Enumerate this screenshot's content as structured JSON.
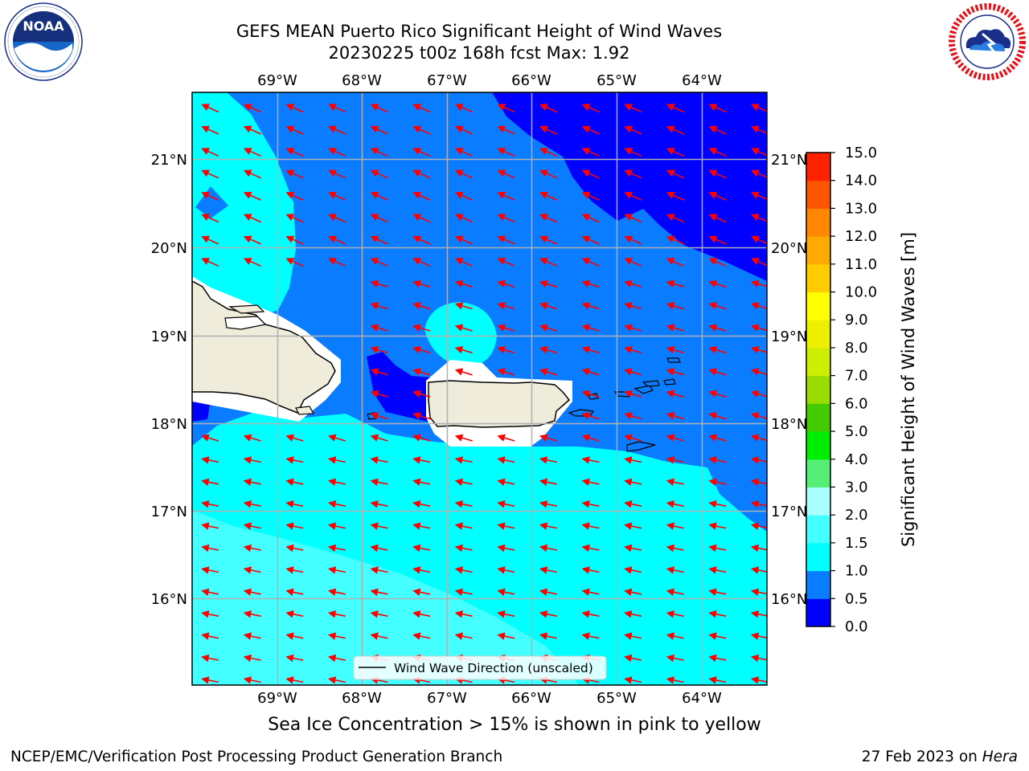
{
  "header": {
    "title_line1": "GEFS MEAN Puerto Rico Significant Height of Wind Waves",
    "title_line2": "20230225 t00z 168h fcst   Max: 1.92"
  },
  "logos": {
    "noaa": {
      "text": "NOAA",
      "ring_text": "NATIONAL OCEANIC AND ATMOSPHERIC ADMINISTRATION · U.S. DEPARTMENT OF COMMERCE"
    },
    "nws": {
      "ring_text": "NATIONAL WEATHER SERVICE"
    }
  },
  "map": {
    "lon_range": [
      -70.0,
      -63.25
    ],
    "lat_range": [
      15.0,
      21.75
    ],
    "lon_ticks": [
      "69°W",
      "68°W",
      "67°W",
      "66°W",
      "65°W",
      "64°W"
    ],
    "lat_ticks": [
      "21°N",
      "20°N",
      "19°N",
      "18°N",
      "17°N",
      "16°N"
    ],
    "grid": true,
    "legend": {
      "label": "Wind Wave Direction (unscaled)",
      "placement": "bottom-center"
    },
    "arrow_color": "#ff0000",
    "land_color": "#efecdc",
    "wind_direction": "from east-southeast toward west-northwest"
  },
  "colorbar": {
    "label": "Significant Height of Wind Waves [m]",
    "ticks": [
      "0.0",
      "0.5",
      "1.0",
      "1.5",
      "2.0",
      "3.0",
      "4.0",
      "5.0",
      "6.0",
      "7.0",
      "8.0",
      "9.0",
      "10.0",
      "11.0",
      "12.0",
      "13.0",
      "14.0",
      "15.0"
    ],
    "colors": [
      "#0000ff",
      "#0a7cff",
      "#00ffff",
      "#44ffff",
      "#aaffff",
      "#55ee77",
      "#00ee00",
      "#44cc00",
      "#99dd00",
      "#ccee00",
      "#eeee00",
      "#ffff00",
      "#ffcc00",
      "#ffaa00",
      "#ff8800",
      "#ff5500",
      "#ff2200"
    ]
  },
  "notes": {
    "ice": "Sea Ice Concentration > 15% is shown in pink to yellow"
  },
  "footer": {
    "left": "NCEP/EMC/Verification Post Processing Product Generation Branch",
    "right_date": "27 Feb 2023 on ",
    "right_machine": "Hera"
  }
}
